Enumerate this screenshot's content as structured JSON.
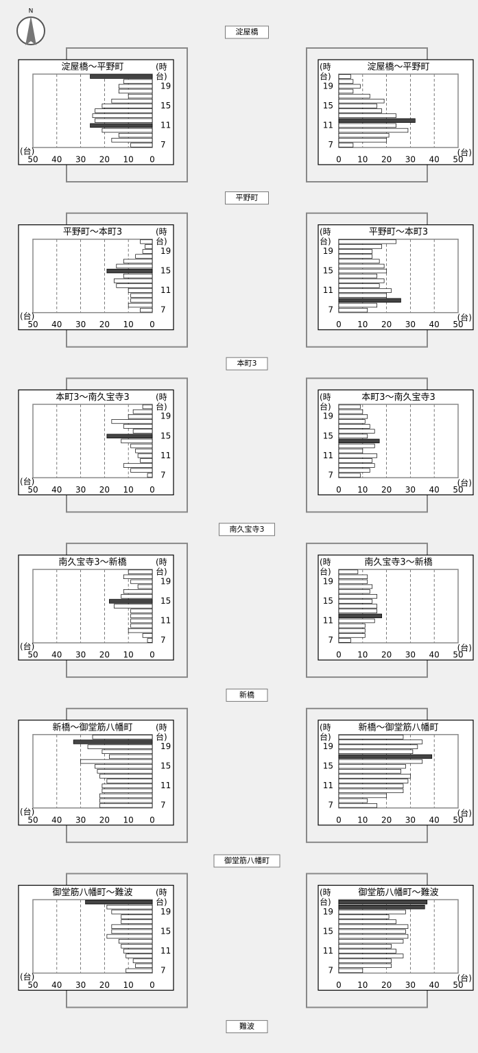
{
  "compass": "N",
  "nodes": [
    "淀屋橋",
    "平野町",
    "本町3",
    "南久宝寺3",
    "新橋",
    "御堂筋八幡町",
    "難波"
  ],
  "chart_data": [
    {
      "type": "bar",
      "orientation": "horizontal",
      "title": "淀屋橋～平野町",
      "x_label": "(台)",
      "y_label": [
        "(時",
        "台)"
      ],
      "categories": [
        7,
        null,
        null,
        null,
        11,
        null,
        null,
        null,
        15,
        null,
        null,
        null,
        19,
        null,
        null
      ],
      "values": [
        9,
        17,
        14,
        21,
        26,
        24,
        25,
        24,
        21,
        17,
        10,
        14,
        14,
        12,
        26
      ],
      "colors": [
        "#fff",
        "#fff",
        "#fff",
        "#fff",
        "#444",
        "#fff",
        "#fff",
        "#fff",
        "#fff",
        "#fff",
        "#fff",
        "#fff",
        "#fff",
        "#fff",
        "#444"
      ],
      "xlim": [
        50,
        0
      ],
      "xticks": [
        50,
        40,
        30,
        20,
        10,
        0
      ],
      "grid": true
    },
    {
      "type": "bar",
      "orientation": "horizontal",
      "title": "淀屋橋～平野町",
      "x_label": "(台)",
      "y_label": [
        "(時",
        "台)"
      ],
      "categories": [
        7,
        null,
        null,
        null,
        11,
        null,
        null,
        null,
        15,
        null,
        null,
        null,
        19,
        null,
        null
      ],
      "values": [
        6,
        20,
        21,
        29,
        24,
        32,
        24,
        18,
        16,
        19,
        13,
        6,
        9,
        6,
        5
      ],
      "colors": [
        "#fff",
        "#fff",
        "#fff",
        "#fff",
        "#fff",
        "#444",
        "#fff",
        "#fff",
        "#fff",
        "#fff",
        "#fff",
        "#fff",
        "#fff",
        "#fff",
        "#fff"
      ],
      "xlim": [
        0,
        50
      ],
      "xticks": [
        0,
        10,
        20,
        30,
        40,
        50
      ],
      "grid": true
    },
    {
      "type": "bar",
      "orientation": "horizontal",
      "title": "平野町～本町3",
      "x_label": "(台)",
      "y_label": [
        "(時",
        "台)"
      ],
      "categories": [
        7,
        null,
        null,
        null,
        11,
        null,
        null,
        null,
        15,
        null,
        null,
        null,
        19,
        null,
        null
      ],
      "values": [
        5,
        10,
        9,
        9,
        10,
        15,
        16,
        12,
        19,
        15,
        12,
        7,
        4,
        3,
        5
      ],
      "colors": [
        "#fff",
        "#fff",
        "#fff",
        "#fff",
        "#fff",
        "#fff",
        "#fff",
        "#fff",
        "#444",
        "#fff",
        "#fff",
        "#fff",
        "#fff",
        "#fff",
        "#fff"
      ],
      "xlim": [
        50,
        0
      ],
      "xticks": [
        50,
        40,
        30,
        20,
        10,
        0
      ],
      "grid": true
    },
    {
      "type": "bar",
      "orientation": "horizontal",
      "title": "平野町～本町3",
      "x_label": "(台)",
      "y_label": [
        "(時",
        "台)"
      ],
      "categories": [
        7,
        null,
        null,
        null,
        11,
        null,
        null,
        null,
        15,
        null,
        null,
        null,
        19,
        null,
        null
      ],
      "values": [
        12,
        16,
        26,
        20,
        22,
        17,
        19,
        16,
        20,
        19,
        17,
        14,
        14,
        18,
        24
      ],
      "colors": [
        "#fff",
        "#fff",
        "#444",
        "#fff",
        "#fff",
        "#fff",
        "#fff",
        "#fff",
        "#fff",
        "#fff",
        "#fff",
        "#fff",
        "#fff",
        "#fff",
        "#fff"
      ],
      "xlim": [
        0,
        50
      ],
      "xticks": [
        0,
        10,
        20,
        30,
        40,
        50
      ],
      "grid": true
    },
    {
      "type": "bar",
      "orientation": "horizontal",
      "title": "本町3～南久宝寺3",
      "x_label": "(台)",
      "y_label": [
        "(時",
        "台)"
      ],
      "categories": [
        7,
        null,
        null,
        null,
        11,
        null,
        null,
        null,
        15,
        null,
        null,
        null,
        19,
        null,
        null
      ],
      "values": [
        2,
        9,
        12,
        5,
        6,
        7,
        9,
        13,
        19,
        8,
        12,
        17,
        10,
        8,
        4
      ],
      "colors": [
        "#fff",
        "#fff",
        "#fff",
        "#fff",
        "#fff",
        "#fff",
        "#fff",
        "#fff",
        "#444",
        "#fff",
        "#fff",
        "#fff",
        "#fff",
        "#fff",
        "#fff"
      ],
      "xlim": [
        50,
        0
      ],
      "xticks": [
        50,
        40,
        30,
        20,
        10,
        0
      ],
      "grid": true
    },
    {
      "type": "bar",
      "orientation": "horizontal",
      "title": "本町3～南久宝寺3",
      "x_label": "(台)",
      "y_label": [
        "(時",
        "台)"
      ],
      "categories": [
        7,
        null,
        null,
        null,
        11,
        null,
        null,
        null,
        15,
        null,
        null,
        null,
        19,
        null,
        null
      ],
      "values": [
        9,
        13,
        15,
        14,
        16,
        10,
        15,
        17,
        12,
        15,
        13,
        11,
        12,
        10,
        9
      ],
      "colors": [
        "#fff",
        "#fff",
        "#fff",
        "#fff",
        "#fff",
        "#fff",
        "#fff",
        "#444",
        "#fff",
        "#fff",
        "#fff",
        "#fff",
        "#fff",
        "#fff",
        "#fff"
      ],
      "xlim": [
        0,
        50
      ],
      "xticks": [
        0,
        10,
        20,
        30,
        40,
        50
      ],
      "grid": true
    },
    {
      "type": "bar",
      "orientation": "horizontal",
      "title": "南久宝寺3～新橋",
      "x_label": "(台)",
      "y_label": [
        "(時",
        "台)"
      ],
      "categories": [
        7,
        null,
        null,
        null,
        11,
        null,
        null,
        null,
        15,
        null,
        null,
        null,
        19,
        null,
        null
      ],
      "values": [
        2,
        4,
        10,
        9,
        9,
        9,
        9,
        16,
        18,
        13,
        12,
        6,
        9,
        12,
        10
      ],
      "colors": [
        "#fff",
        "#fff",
        "#fff",
        "#fff",
        "#fff",
        "#fff",
        "#fff",
        "#fff",
        "#444",
        "#fff",
        "#fff",
        "#fff",
        "#fff",
        "#fff",
        "#fff"
      ],
      "xlim": [
        50,
        0
      ],
      "xticks": [
        50,
        40,
        30,
        20,
        10,
        0
      ],
      "grid": true
    },
    {
      "type": "bar",
      "orientation": "horizontal",
      "title": "南久宝寺3～新橋",
      "x_label": "(台)",
      "y_label": [
        "(時",
        "台)"
      ],
      "categories": [
        7,
        null,
        null,
        null,
        11,
        null,
        null,
        null,
        15,
        null,
        null,
        null,
        19,
        null,
        null
      ],
      "values": [
        5,
        11,
        11,
        11,
        15,
        18,
        16,
        16,
        14,
        16,
        13,
        14,
        12,
        12,
        8
      ],
      "colors": [
        "#fff",
        "#fff",
        "#fff",
        "#fff",
        "#fff",
        "#444",
        "#fff",
        "#fff",
        "#fff",
        "#fff",
        "#fff",
        "#fff",
        "#fff",
        "#fff",
        "#fff"
      ],
      "xlim": [
        0,
        50
      ],
      "xticks": [
        0,
        10,
        20,
        30,
        40,
        50
      ],
      "grid": true
    },
    {
      "type": "bar",
      "orientation": "horizontal",
      "title": "新橋～御堂筋八幡町",
      "x_label": "(台)",
      "y_label": [
        "(時",
        "台)"
      ],
      "categories": [
        7,
        null,
        null,
        null,
        11,
        null,
        null,
        null,
        15,
        null,
        null,
        null,
        19,
        null,
        null
      ],
      "values": [
        22,
        22,
        22,
        21,
        21,
        19,
        22,
        23,
        24,
        30,
        18,
        21,
        27,
        33,
        25
      ],
      "colors": [
        "#fff",
        "#fff",
        "#fff",
        "#fff",
        "#fff",
        "#fff",
        "#fff",
        "#fff",
        "#fff",
        "#fff",
        "#fff",
        "#fff",
        "#fff",
        "#444",
        "#fff"
      ],
      "xlim": [
        50,
        0
      ],
      "xticks": [
        50,
        40,
        30,
        20,
        10,
        0
      ],
      "grid": true
    },
    {
      "type": "bar",
      "orientation": "horizontal",
      "title": "新橋～御堂筋八幡町",
      "x_label": "(台)",
      "y_label": [
        "(時",
        "台)"
      ],
      "categories": [
        7,
        null,
        null,
        null,
        11,
        null,
        null,
        null,
        15,
        null,
        null,
        null,
        19,
        null,
        null
      ],
      "values": [
        16,
        12,
        20,
        27,
        27,
        29,
        30,
        26,
        28,
        35,
        39,
        31,
        33,
        35,
        27
      ],
      "colors": [
        "#fff",
        "#fff",
        "#fff",
        "#fff",
        "#fff",
        "#fff",
        "#fff",
        "#fff",
        "#fff",
        "#fff",
        "#444",
        "#fff",
        "#fff",
        "#fff",
        "#fff"
      ],
      "xlim": [
        0,
        50
      ],
      "xticks": [
        0,
        10,
        20,
        30,
        40,
        50
      ],
      "grid": true
    },
    {
      "type": "bar",
      "orientation": "horizontal",
      "title": "御堂筋八幡町～難波",
      "x_label": "(台)",
      "y_label": [
        "(時",
        "台)"
      ],
      "categories": [
        7,
        null,
        null,
        null,
        11,
        null,
        null,
        null,
        15,
        null,
        null,
        null,
        19,
        null,
        null
      ],
      "values": [
        11,
        7,
        8,
        11,
        12,
        13,
        14,
        19,
        17,
        17,
        13,
        13,
        17,
        19,
        28
      ],
      "colors": [
        "#fff",
        "#fff",
        "#fff",
        "#fff",
        "#fff",
        "#fff",
        "#fff",
        "#fff",
        "#fff",
        "#fff",
        "#fff",
        "#fff",
        "#fff",
        "#fff",
        "#444"
      ],
      "xlim": [
        50,
        0
      ],
      "xticks": [
        50,
        40,
        30,
        20,
        10,
        0
      ],
      "grid": true
    },
    {
      "type": "bar",
      "orientation": "horizontal",
      "title": "御堂筋八幡町～難波",
      "x_label": "(台)",
      "y_label": [
        "(時",
        "台)"
      ],
      "categories": [
        7,
        null,
        null,
        null,
        11,
        null,
        null,
        null,
        15,
        null,
        null,
        null,
        19,
        null,
        null
      ],
      "values": [
        10,
        22,
        22,
        27,
        24,
        22,
        27,
        29,
        28,
        29,
        24,
        21,
        28,
        36,
        37
      ],
      "colors": [
        "#fff",
        "#fff",
        "#fff",
        "#fff",
        "#fff",
        "#fff",
        "#fff",
        "#fff",
        "#fff",
        "#fff",
        "#fff",
        "#fff",
        "#fff",
        "#444",
        "#444"
      ],
      "xlim": [
        0,
        50
      ],
      "xticks": [
        0,
        10,
        20,
        30,
        40,
        50
      ],
      "grid": true
    }
  ]
}
